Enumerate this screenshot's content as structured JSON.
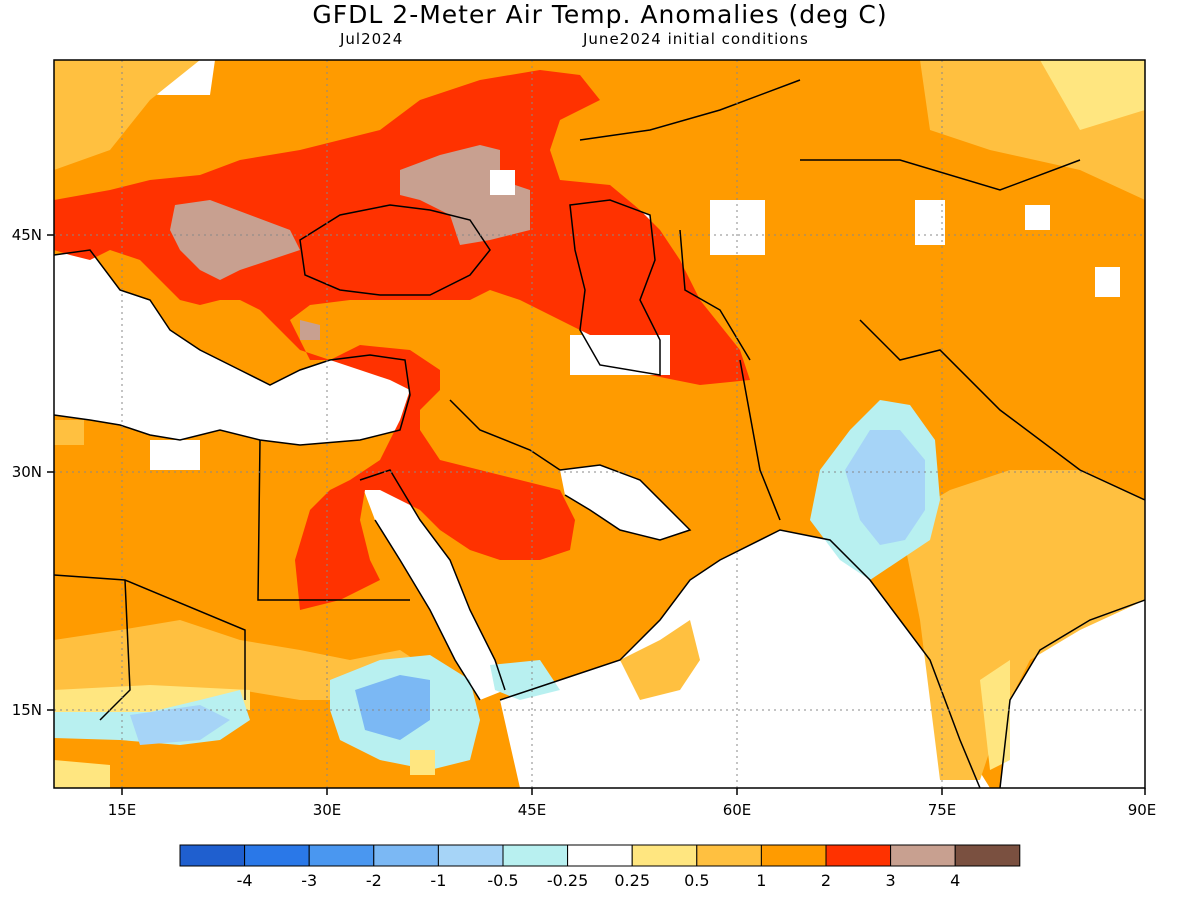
{
  "title": "GFDL 2-Meter Air Temp. Anomalies (deg C)",
  "subtitle_left": "Jul2024",
  "subtitle_right": "June2024 initial conditions",
  "map": {
    "lon_labels": [
      "15E",
      "30E",
      "45E",
      "60E",
      "75E",
      "90E"
    ],
    "lat_labels": [
      "45N",
      "30N",
      "15N"
    ],
    "lon_range": [
      10,
      90
    ],
    "lat_range": [
      10,
      54
    ]
  },
  "colorbar": {
    "colors": [
      "#1f5fcf",
      "#2a78e8",
      "#4a97f0",
      "#7bb8f4",
      "#a6d4f7",
      "#b8f0f0",
      "#ffffff",
      "#ffe680",
      "#ffc040",
      "#ff9b00",
      "#ff3200",
      "#c8a090",
      "#7a5040"
    ],
    "labels": [
      "-4",
      "-3",
      "-2",
      "-1",
      "-0.5",
      "-0.25",
      "0.25",
      "0.5",
      "1",
      "2",
      "3",
      "4"
    ]
  }
}
